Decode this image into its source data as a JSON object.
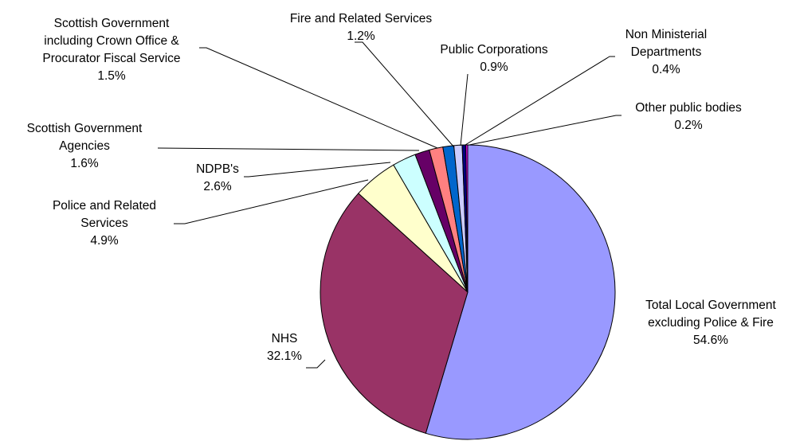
{
  "chart_data": {
    "type": "pie",
    "title": "",
    "slices": [
      {
        "name": "Total Local Government excluding Police & Fire",
        "label_lines": [
          "Total Local Government",
          "excluding Police & Fire"
        ],
        "value": 54.6,
        "value_label": "54.6%",
        "color": "#9999FF"
      },
      {
        "name": "NHS",
        "label_lines": [
          "NHS"
        ],
        "value": 32.1,
        "value_label": "32.1%",
        "color": "#993366"
      },
      {
        "name": "Police and Related Services",
        "label_lines": [
          "Police and Related",
          "Services"
        ],
        "value": 4.9,
        "value_label": "4.9%",
        "color": "#FFFFCC"
      },
      {
        "name": "NDPB's",
        "label_lines": [
          "NDPB's"
        ],
        "value": 2.6,
        "value_label": "2.6%",
        "color": "#CCFFFF"
      },
      {
        "name": "Scottish Government Agencies",
        "label_lines": [
          "Scottish Government",
          "Agencies"
        ],
        "value": 1.6,
        "value_label": "1.6%",
        "color": "#660066"
      },
      {
        "name": "Scottish Government including Crown Office & Procurator Fiscal Service",
        "label_lines": [
          "Scottish Government",
          "including Crown Office &",
          "Procurator Fiscal Service"
        ],
        "value": 1.5,
        "value_label": "1.5%",
        "color": "#FF8080"
      },
      {
        "name": "Fire and Related Services",
        "label_lines": [
          "Fire and Related Services"
        ],
        "value": 1.2,
        "value_label": "1.2%",
        "color": "#0066CC"
      },
      {
        "name": "Public Corporations",
        "label_lines": [
          "Public Corporations"
        ],
        "value": 0.9,
        "value_label": "0.9%",
        "color": "#CCCCFF"
      },
      {
        "name": "Non Ministerial Departments",
        "label_lines": [
          "Non Ministerial",
          "Departments"
        ],
        "value": 0.4,
        "value_label": "0.4%",
        "color": "#000080"
      },
      {
        "name": "Other public bodies",
        "label_lines": [
          "Other public bodies"
        ],
        "value": 0.2,
        "value_label": "0.2%",
        "color": "#FF00FF"
      }
    ]
  }
}
